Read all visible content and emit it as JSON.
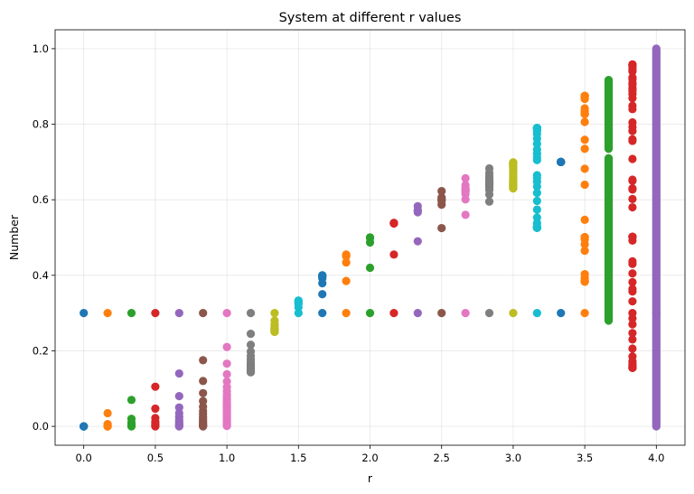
{
  "chart_data": {
    "type": "scatter",
    "title": "System at different r values",
    "xlabel": "r",
    "ylabel": "Number",
    "xlim": [
      -0.2,
      4.2
    ],
    "ylim": [
      -0.05,
      1.05
    ],
    "xticks": [
      0.0,
      0.5,
      1.0,
      1.5,
      2.0,
      2.5,
      3.0,
      3.5,
      4.0
    ],
    "xtick_labels": [
      "0.0",
      "0.5",
      "1.0",
      "1.5",
      "2.0",
      "2.5",
      "3.0",
      "3.5",
      "4.0"
    ],
    "yticks": [
      0.0,
      0.2,
      0.4,
      0.6,
      0.8,
      1.0
    ],
    "ytick_labels": [
      "0.0",
      "0.2",
      "0.4",
      "0.6",
      "0.8",
      "1.0"
    ],
    "grid": true,
    "initial_value": 0.3,
    "series": [
      {
        "r": 0.0,
        "color": "#1f77b4",
        "points": [
          0.3,
          0.0,
          0.0,
          0.0,
          0.0
        ]
      },
      {
        "r": 0.1667,
        "color": "#ff7f0e",
        "points": [
          0.3,
          0.035,
          0.006,
          0.003,
          0.001,
          0.0,
          0.0
        ]
      },
      {
        "r": 0.3333,
        "color": "#2ca02c",
        "points": [
          0.3,
          0.07,
          0.02,
          0.01,
          0.005,
          0.002,
          0.0
        ]
      },
      {
        "r": 0.5,
        "color": "#d62728",
        "points": [
          0.3,
          0.105,
          0.047,
          0.022,
          0.012,
          0.006,
          0.002,
          0.0
        ]
      },
      {
        "r": 0.6667,
        "color": "#9467bd",
        "points": [
          0.3,
          0.14,
          0.08,
          0.05,
          0.035,
          0.025,
          0.018,
          0.012,
          0.008,
          0.005,
          0.003,
          0.001,
          0.0
        ]
      },
      {
        "r": 0.8333,
        "color": "#8c564b",
        "points": [
          0.3,
          0.175,
          0.12,
          0.088,
          0.067,
          0.052,
          0.041,
          0.033,
          0.026,
          0.021,
          0.016,
          0.012,
          0.008,
          0.005,
          0.003,
          0.001,
          0.0
        ]
      },
      {
        "r": 1.0,
        "color": "#e377c2",
        "points": [
          0.3,
          0.21,
          0.166,
          0.138,
          0.119,
          0.104,
          0.093,
          0.084,
          0.077,
          0.071,
          0.066,
          0.061,
          0.057,
          0.053,
          0.05,
          0.047,
          0.044,
          0.041,
          0.038,
          0.035,
          0.032,
          0.029,
          0.026,
          0.023,
          0.02,
          0.017,
          0.014,
          0.011,
          0.008,
          0.005,
          0.003,
          0.001
        ]
      },
      {
        "r": 1.1667,
        "color": "#7f7f7f",
        "points": [
          0.3,
          0.245,
          0.216,
          0.198,
          0.186,
          0.177,
          0.17,
          0.165,
          0.161,
          0.158,
          0.156,
          0.154,
          0.152,
          0.15,
          0.148,
          0.146,
          0.145,
          0.144,
          0.143
        ]
      },
      {
        "r": 1.3333,
        "color": "#bcbd22",
        "points": [
          0.3,
          0.28,
          0.27,
          0.265,
          0.262,
          0.259,
          0.257,
          0.255,
          0.254,
          0.253,
          0.252,
          0.251,
          0.25
        ]
      },
      {
        "r": 1.5,
        "color": "#17becf",
        "points": [
          0.3,
          0.315,
          0.324,
          0.328,
          0.331,
          0.332,
          0.333,
          0.333
        ]
      },
      {
        "r": 1.6667,
        "color": "#1f77b4",
        "points": [
          0.3,
          0.35,
          0.379,
          0.392,
          0.397,
          0.399,
          0.4,
          0.4
        ]
      },
      {
        "r": 1.8333,
        "color": "#ff7f0e",
        "points": [
          0.3,
          0.385,
          0.434,
          0.45,
          0.453,
          0.454,
          0.455
        ]
      },
      {
        "r": 2.0,
        "color": "#2ca02c",
        "points": [
          0.3,
          0.42,
          0.487,
          0.5,
          0.5,
          0.5
        ]
      },
      {
        "r": 2.1667,
        "color": "#d62728",
        "points": [
          0.3,
          0.455,
          0.537,
          0.539,
          0.538,
          0.538
        ]
      },
      {
        "r": 2.3333,
        "color": "#9467bd",
        "points": [
          0.3,
          0.49,
          0.583,
          0.567,
          0.573,
          0.571
        ]
      },
      {
        "r": 2.5,
        "color": "#8c564b",
        "points": [
          0.3,
          0.525,
          0.623,
          0.587,
          0.606,
          0.597,
          0.601,
          0.6,
          0.6
        ]
      },
      {
        "r": 2.6667,
        "color": "#e377c2",
        "points": [
          0.3,
          0.56,
          0.657,
          0.601,
          0.639,
          0.615,
          0.631,
          0.621,
          0.628,
          0.623,
          0.626,
          0.624,
          0.625
        ]
      },
      {
        "r": 2.8333,
        "color": "#7f7f7f",
        "points": [
          0.3,
          0.595,
          0.683,
          0.614,
          0.671,
          0.626,
          0.663,
          0.633,
          0.657,
          0.638,
          0.653,
          0.641,
          0.65,
          0.643,
          0.648,
          0.645,
          0.647
        ]
      },
      {
        "r": 3.0,
        "color": "#bcbd22",
        "points": [
          0.3,
          0.63,
          0.699,
          0.631,
          0.698,
          0.632,
          0.697,
          0.634,
          0.696,
          0.635,
          0.695,
          0.637,
          0.694,
          0.638,
          0.693,
          0.64,
          0.692,
          0.641,
          0.691,
          0.642,
          0.69,
          0.644,
          0.689,
          0.645,
          0.688,
          0.647,
          0.686,
          0.65,
          0.684,
          0.653,
          0.681,
          0.656,
          0.678,
          0.66,
          0.674,
          0.664,
          0.67
        ]
      },
      {
        "r": 3.1667,
        "color": "#17becf",
        "points": [
          0.3,
          0.665,
          0.705,
          0.658,
          0.712,
          0.648,
          0.722,
          0.635,
          0.733,
          0.618,
          0.748,
          0.597,
          0.762,
          0.574,
          0.774,
          0.553,
          0.783,
          0.538,
          0.787,
          0.53,
          0.789,
          0.527,
          0.79,
          0.526,
          0.79,
          0.526,
          0.79,
          0.526,
          0.79,
          0.526,
          0.79,
          0.526,
          0.79,
          0.526,
          0.79,
          0.526
        ]
      },
      {
        "r": 3.3333,
        "color": "#1f77b4",
        "points": [
          0.3,
          0.7,
          0.7,
          0.7,
          0.7,
          0.7,
          0.7,
          0.7,
          0.7,
          0.7,
          0.7,
          0.7,
          0.7,
          0.7,
          0.7,
          0.7,
          0.7,
          0.7,
          0.7,
          0.7
        ]
      },
      {
        "r": 3.5,
        "color": "#ff7f0e",
        "points": [
          0.3,
          0.735,
          0.682,
          0.759,
          0.64,
          0.806,
          0.547,
          0.867,
          0.403,
          0.842,
          0.465,
          0.871,
          0.393,
          0.835,
          0.482,
          0.874,
          0.386,
          0.829,
          0.495,
          0.875,
          0.383,
          0.827,
          0.501,
          0.875,
          0.383,
          0.827,
          0.501,
          0.875,
          0.383,
          0.827,
          0.501,
          0.875
        ]
      },
      {
        "r": 3.6667,
        "color": "#2ca02c",
        "band": [
          0.28,
          0.71
        ],
        "band2": [
          0.735,
          0.917
        ]
      },
      {
        "r": 3.8333,
        "color": "#d62728",
        "points": [
          0.3,
          0.805,
          0.602,
          0.919,
          0.286,
          0.782,
          0.653,
          0.869,
          0.437,
          0.943,
          0.206,
          0.627,
          0.896,
          0.357,
          0.88,
          0.405,
          0.924,
          0.27,
          0.756,
          0.708,
          0.793,
          0.63,
          0.894,
          0.364,
          0.888,
          0.382,
          0.905,
          0.331,
          0.849,
          0.492,
          0.958,
          0.155,
          0.502,
          0.958,
          0.155,
          0.502,
          0.958,
          0.155,
          0.502,
          0.958,
          0.155,
          0.502,
          0.958,
          0.155,
          0.95,
          0.16,
          0.165,
          0.172,
          0.185,
          0.23,
          0.247,
          0.43,
          0.58,
          0.65,
          0.76,
          0.84,
          0.91,
          0.94,
          0.955
        ]
      },
      {
        "r": 4.0,
        "color": "#9467bd",
        "band": [
          0.0,
          1.0
        ]
      }
    ]
  }
}
